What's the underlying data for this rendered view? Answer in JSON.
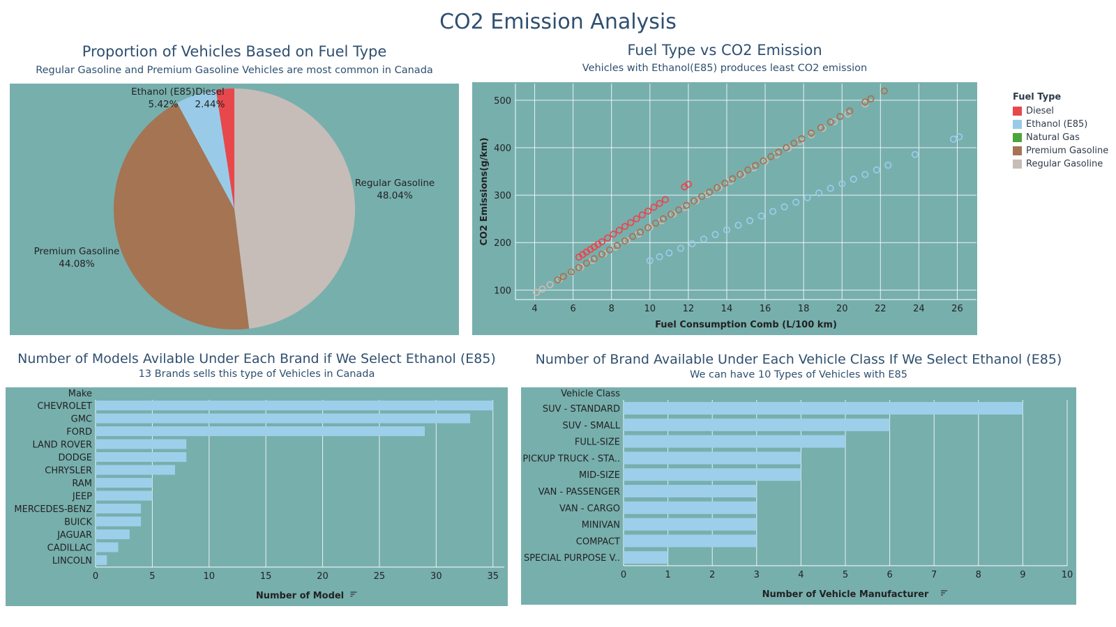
{
  "dashboard": {
    "title": "CO2 Emission Analysis"
  },
  "pie_panel": {
    "title": "Proportion of Vehicles Based on Fuel Type",
    "subtitle": "Regular Gasoline and Premium Gasoline Vehicles are most common in Canada"
  },
  "scatter_panel": {
    "title": "Fuel Type vs CO2 Emission",
    "subtitle": "Vehicles with Ethanol(E85) produces least CO2 emission"
  },
  "make_panel": {
    "title": "Number of Models Avilable Under Each Brand if We Select Ethanol (E85)",
    "subtitle": "13 Brands sells this type of Vehicles in Canada"
  },
  "class_panel": {
    "title": "Number of Brand Available Under Each Vehicle Class If We Select Ethanol (E85)",
    "subtitle": "We can have 10 Types of Vehicles  with E85"
  },
  "legend": {
    "title": "Fuel Type",
    "items": [
      {
        "label": "Diesel",
        "color": "#e8474c"
      },
      {
        "label": "Ethanol (E85)",
        "color": "#99cbe8"
      },
      {
        "label": "Natural Gas",
        "color": "#4ea43b"
      },
      {
        "label": "Premium Gasoline",
        "color": "#a57453"
      },
      {
        "label": "Regular Gasoline",
        "color": "#c6bdb8"
      }
    ]
  },
  "chart_data": [
    {
      "type": "pie",
      "slices": [
        {
          "label": "Regular Gasoline",
          "value": 48.04,
          "display": "48.04%",
          "color": "#c6bdb8"
        },
        {
          "label": "Premium Gasoline",
          "value": 44.08,
          "display": "44.08%",
          "color": "#a57453"
        },
        {
          "label": "Ethanol (E85)",
          "value": 5.42,
          "display": "5.42%",
          "color": "#99cbe8"
        },
        {
          "label": "Diesel",
          "value": 2.44,
          "display": "2.44%",
          "color": "#e8474c"
        }
      ]
    },
    {
      "type": "scatter",
      "xlabel": "Fuel Consumption Comb (L/100 km)",
      "ylabel": "CO2 Emissions(g/km)",
      "xlim": [
        3,
        27
      ],
      "ylim": [
        80,
        535
      ],
      "xticks": [
        4,
        6,
        8,
        10,
        12,
        14,
        16,
        18,
        20,
        22,
        24,
        26
      ],
      "yticks": [
        100,
        200,
        300,
        400,
        500
      ],
      "grid": true,
      "legend": "right",
      "series": [
        {
          "name": "Regular Gasoline",
          "color": "#c6bdb8",
          "slope": 23.2,
          "x": [
            4.1,
            4.4,
            4.8,
            5.3,
            5.9,
            6.4,
            7.0,
            7.6,
            8.2,
            8.8,
            9.4,
            10.0,
            10.6,
            11.2,
            11.8,
            12.4,
            13.0,
            13.6,
            14.2,
            14.8,
            15.4,
            16.0,
            16.6,
            17.2,
            17.8,
            18.4,
            19.0,
            19.6,
            20.3,
            21.2
          ]
        },
        {
          "name": "Premium Gasoline",
          "color": "#a57453",
          "slope": 23.4,
          "x": [
            5.2,
            5.5,
            5.9,
            6.3,
            6.7,
            7.1,
            7.5,
            7.9,
            8.3,
            8.7,
            9.1,
            9.5,
            9.9,
            10.3,
            10.7,
            11.1,
            11.5,
            11.9,
            12.3,
            12.7,
            13.1,
            13.5,
            13.9,
            14.3,
            14.7,
            15.1,
            15.5,
            15.9,
            16.3,
            16.7,
            17.1,
            17.5,
            17.9,
            18.4,
            18.9,
            19.4,
            19.9,
            20.4,
            21.2,
            21.5,
            22.2
          ]
        },
        {
          "name": "Diesel",
          "color": "#e8474c",
          "slope": 26.9,
          "x": [
            6.3,
            6.5,
            6.7,
            6.9,
            7.1,
            7.3,
            7.5,
            7.8,
            8.1,
            8.4,
            8.7,
            9.0,
            9.3,
            9.6,
            9.9,
            10.2,
            10.5,
            10.8,
            11.8,
            12.0
          ]
        },
        {
          "name": "Ethanol (E85)",
          "color": "#99cbe8",
          "slope": 16.2,
          "x": [
            10.0,
            10.5,
            11.0,
            11.6,
            12.2,
            12.8,
            13.4,
            14.0,
            14.6,
            15.2,
            15.8,
            16.4,
            17.0,
            17.6,
            18.2,
            18.8,
            19.4,
            20.0,
            20.6,
            21.2,
            21.8,
            22.4,
            23.8,
            25.8,
            26.1
          ]
        },
        {
          "name": "Natural Gas",
          "color": "#4ea43b",
          "slope": 23.0,
          "x": []
        }
      ]
    },
    {
      "type": "bar",
      "orientation": "horizontal",
      "row_header": "Make",
      "xlabel": "Number of Model",
      "xlim": [
        0,
        36
      ],
      "xticks": [
        0,
        5,
        10,
        15,
        20,
        25,
        30,
        35
      ],
      "categories": [
        "CHEVROLET",
        "GMC",
        "FORD",
        "LAND ROVER",
        "DODGE",
        "CHRYSLER",
        "RAM",
        "JEEP",
        "MERCEDES-BENZ",
        "BUICK",
        "JAGUAR",
        "CADILLAC",
        "LINCOLN"
      ],
      "values": [
        35,
        33,
        29,
        8,
        8,
        7,
        5,
        5,
        4,
        4,
        3,
        2,
        1
      ]
    },
    {
      "type": "bar",
      "orientation": "horizontal",
      "row_header": "Vehicle Class",
      "xlabel": "Number of Vehicle Manufacturer",
      "xlim": [
        0,
        10
      ],
      "xticks": [
        0,
        1,
        2,
        3,
        4,
        5,
        6,
        7,
        8,
        9,
        10
      ],
      "categories": [
        "SUV - STANDARD",
        "SUV - SMALL",
        "FULL-SIZE",
        "PICKUP TRUCK - STA..",
        "MID-SIZE",
        "VAN - PASSENGER",
        "VAN - CARGO",
        "MINIVAN",
        "COMPACT",
        "SPECIAL PURPOSE V.."
      ],
      "values": [
        9,
        6,
        5,
        4,
        4,
        3,
        3,
        3,
        3,
        1
      ]
    }
  ]
}
